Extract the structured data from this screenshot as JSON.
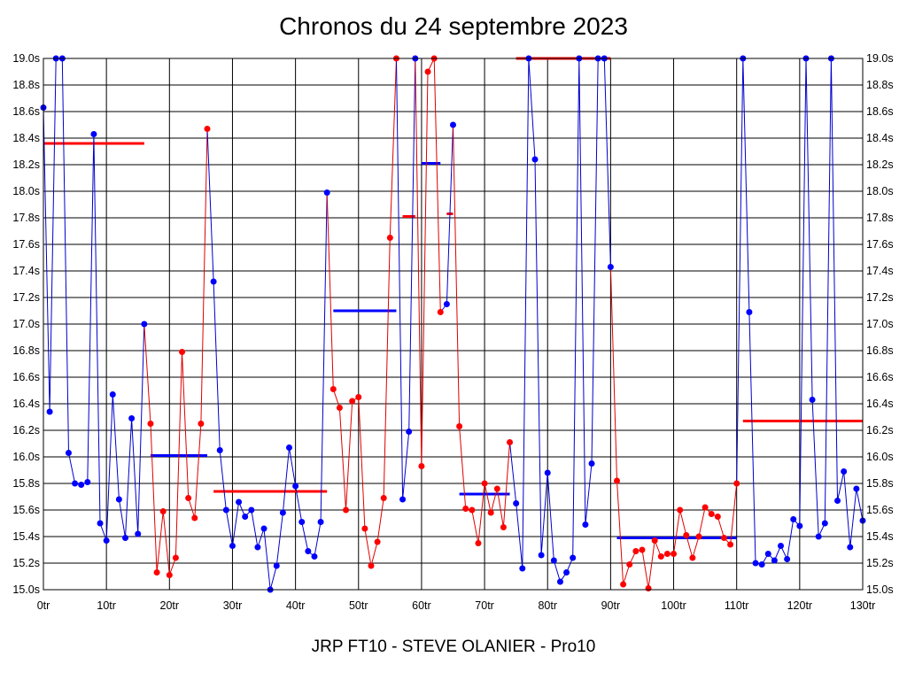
{
  "chart_data": {
    "type": "line",
    "title": "Chronos du 24 septembre 2023",
    "footer": "JRP FT10 - STEVE OLANIER - Pro10",
    "xlim": [
      0,
      130
    ],
    "ylim": [
      15.0,
      19.0
    ],
    "x_ticks": [
      0,
      10,
      20,
      30,
      40,
      50,
      60,
      70,
      80,
      90,
      100,
      110,
      120,
      130
    ],
    "x_tick_labels": [
      "0tr",
      "10tr",
      "20tr",
      "30tr",
      "40tr",
      "50tr",
      "60tr",
      "70tr",
      "80tr",
      "90tr",
      "100tr",
      "110tr",
      "120tr",
      "130tr"
    ],
    "y_ticks": [
      15.0,
      15.2,
      15.4,
      15.6,
      15.8,
      16.0,
      16.2,
      16.4,
      16.6,
      16.8,
      17.0,
      17.2,
      17.4,
      17.6,
      17.8,
      18.0,
      18.2,
      18.4,
      18.6,
      18.8,
      19.0
    ],
    "y_tick_labels": [
      "15.0s",
      "15.2s",
      "15.4s",
      "15.6s",
      "15.8s",
      "16.0s",
      "16.2s",
      "16.4s",
      "16.6s",
      "16.8s",
      "17.0s",
      "17.2s",
      "17.4s",
      "17.6s",
      "17.8s",
      "18.0s",
      "18.2s",
      "18.4s",
      "18.6s",
      "18.8s",
      "19.0s"
    ],
    "grid": true,
    "colors": {
      "blue": "#0000ff",
      "red": "#ff0000",
      "line_blue": "#0000cc",
      "line_red": "#e00000"
    },
    "series": [
      {
        "color": "blue",
        "points": [
          [
            0,
            18.63
          ],
          [
            1,
            16.34
          ],
          [
            2,
            19.0
          ],
          [
            3,
            19.0
          ],
          [
            4,
            16.03
          ],
          [
            5,
            15.8
          ],
          [
            6,
            15.79
          ],
          [
            7,
            15.81
          ],
          [
            8,
            18.43
          ],
          [
            9,
            15.5
          ],
          [
            10,
            15.37
          ],
          [
            11,
            16.47
          ],
          [
            12,
            15.68
          ],
          [
            13,
            15.39
          ],
          [
            14,
            16.29
          ],
          [
            15,
            15.42
          ],
          [
            16,
            17.0
          ]
        ]
      },
      {
        "color": "red",
        "points": [
          [
            17,
            16.25
          ],
          [
            18,
            15.13
          ],
          [
            19,
            15.59
          ],
          [
            20,
            15.11
          ],
          [
            21,
            15.24
          ],
          [
            22,
            16.79
          ],
          [
            23,
            15.69
          ],
          [
            24,
            15.54
          ],
          [
            25,
            16.25
          ],
          [
            26,
            18.47
          ]
        ]
      },
      {
        "color": "blue",
        "points": [
          [
            27,
            17.32
          ],
          [
            28,
            16.05
          ],
          [
            29,
            15.6
          ],
          [
            30,
            15.33
          ],
          [
            31,
            15.66
          ],
          [
            32,
            15.55
          ],
          [
            33,
            15.6
          ],
          [
            34,
            15.32
          ],
          [
            35,
            15.46
          ],
          [
            36,
            15.0
          ],
          [
            37,
            15.18
          ],
          [
            38,
            15.58
          ],
          [
            39,
            16.07
          ],
          [
            40,
            15.78
          ],
          [
            41,
            15.51
          ],
          [
            42,
            15.29
          ],
          [
            43,
            15.25
          ],
          [
            44,
            15.51
          ],
          [
            45,
            17.99
          ]
        ]
      },
      {
        "color": "red",
        "points": [
          [
            46,
            16.51
          ],
          [
            47,
            16.37
          ],
          [
            48,
            15.6
          ],
          [
            49,
            16.42
          ],
          [
            50,
            16.45
          ],
          [
            51,
            15.46
          ],
          [
            52,
            15.18
          ],
          [
            53,
            15.36
          ],
          [
            54,
            15.69
          ],
          [
            55,
            17.65
          ],
          [
            56,
            19.0
          ]
        ]
      },
      {
        "color": "blue",
        "points": [
          [
            57,
            15.68
          ],
          [
            58,
            16.19
          ],
          [
            59,
            19.0
          ]
        ]
      },
      {
        "color": "red",
        "points": [
          [
            60,
            15.93
          ],
          [
            61,
            18.9
          ],
          [
            62,
            19.0
          ],
          [
            63,
            17.09
          ]
        ]
      },
      {
        "color": "blue",
        "points": [
          [
            64,
            17.15
          ],
          [
            65,
            18.5
          ]
        ]
      },
      {
        "color": "red",
        "points": [
          [
            66,
            16.23
          ],
          [
            67,
            15.61
          ],
          [
            68,
            15.6
          ],
          [
            69,
            15.35
          ],
          [
            70,
            15.8
          ],
          [
            71,
            15.58
          ],
          [
            72,
            15.76
          ],
          [
            73,
            15.47
          ],
          [
            74,
            16.11
          ]
        ]
      },
      {
        "color": "blue",
        "points": [
          [
            75,
            15.65
          ],
          [
            76,
            15.16
          ],
          [
            77,
            19.0
          ],
          [
            78,
            18.24
          ],
          [
            79,
            15.26
          ],
          [
            80,
            15.88
          ],
          [
            81,
            15.22
          ],
          [
            82,
            15.06
          ],
          [
            83,
            15.13
          ],
          [
            84,
            15.24
          ],
          [
            85,
            19.0
          ],
          [
            86,
            15.49
          ],
          [
            87,
            15.95
          ],
          [
            88,
            19.0
          ],
          [
            89,
            19.0
          ],
          [
            90,
            17.43
          ]
        ]
      },
      {
        "color": "red",
        "points": [
          [
            91,
            15.82
          ],
          [
            92,
            15.04
          ],
          [
            93,
            15.19
          ],
          [
            94,
            15.29
          ],
          [
            95,
            15.3
          ],
          [
            96,
            15.01
          ],
          [
            97,
            15.37
          ],
          [
            98,
            15.25
          ],
          [
            99,
            15.27
          ],
          [
            100,
            15.27
          ],
          [
            101,
            15.6
          ],
          [
            102,
            15.41
          ],
          [
            103,
            15.24
          ],
          [
            104,
            15.4
          ],
          [
            105,
            15.62
          ],
          [
            106,
            15.57
          ],
          [
            107,
            15.55
          ],
          [
            108,
            15.39
          ],
          [
            109,
            15.34
          ],
          [
            110,
            15.8
          ]
        ]
      },
      {
        "color": "blue",
        "points": [
          [
            111,
            19.0
          ],
          [
            112,
            17.09
          ],
          [
            113,
            15.2
          ],
          [
            114,
            15.19
          ],
          [
            115,
            15.27
          ],
          [
            116,
            15.22
          ],
          [
            117,
            15.33
          ],
          [
            118,
            15.23
          ],
          [
            119,
            15.53
          ],
          [
            120,
            15.48
          ],
          [
            121,
            19.0
          ],
          [
            122,
            16.43
          ],
          [
            123,
            15.4
          ],
          [
            124,
            15.5
          ],
          [
            125,
            19.0
          ],
          [
            126,
            15.67
          ],
          [
            127,
            15.89
          ],
          [
            128,
            15.32
          ],
          [
            129,
            15.76
          ],
          [
            130,
            15.52
          ]
        ]
      }
    ],
    "averages": [
      {
        "color": "red",
        "x": [
          0,
          16
        ],
        "y": 18.36
      },
      {
        "color": "blue",
        "x": [
          17,
          26
        ],
        "y": 16.01
      },
      {
        "color": "red",
        "x": [
          27,
          45
        ],
        "y": 15.74
      },
      {
        "color": "blue",
        "x": [
          46,
          56
        ],
        "y": 17.1
      },
      {
        "color": "red",
        "x": [
          57,
          59
        ],
        "y": 17.81
      },
      {
        "color": "blue",
        "x": [
          60,
          63
        ],
        "y": 18.21
      },
      {
        "color": "red",
        "x": [
          64,
          65
        ],
        "y": 17.83
      },
      {
        "color": "blue",
        "x": [
          66,
          74
        ],
        "y": 15.72
      },
      {
        "color": "red",
        "x": [
          75,
          90
        ],
        "y": 19.0
      },
      {
        "color": "blue",
        "x": [
          91,
          110
        ],
        "y": 15.39
      },
      {
        "color": "red",
        "x": [
          111,
          130
        ],
        "y": 16.27
      }
    ]
  }
}
